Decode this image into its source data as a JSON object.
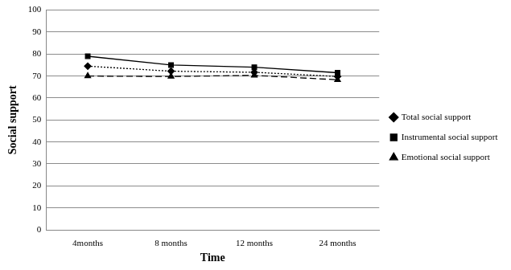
{
  "chart_data": {
    "type": "line",
    "x_label": "Time",
    "y_label": "Social support",
    "categories": [
      "4months",
      "8 months",
      "12 months",
      "24 months"
    ],
    "series": [
      {
        "name": "Total social support",
        "color": "#000000",
        "marker": "diamond",
        "line_style": "dotted",
        "values": [
          74.5,
          72.2,
          71.7,
          69.8
        ]
      },
      {
        "name": "Instrumental social support",
        "color": "#000000",
        "marker": "square",
        "line_style": "solid",
        "values": [
          79,
          75,
          74,
          71.5
        ]
      },
      {
        "name": "Emotional social support",
        "color": "#000000",
        "marker": "triangle",
        "line_style": "dashed",
        "values": [
          70,
          69.8,
          70.3,
          68.3
        ]
      }
    ],
    "ylim": [
      0,
      100
    ],
    "yticks": [
      0,
      10,
      20,
      30,
      40,
      50,
      60,
      70,
      80,
      90,
      100
    ],
    "grid": true,
    "legend": "right"
  }
}
